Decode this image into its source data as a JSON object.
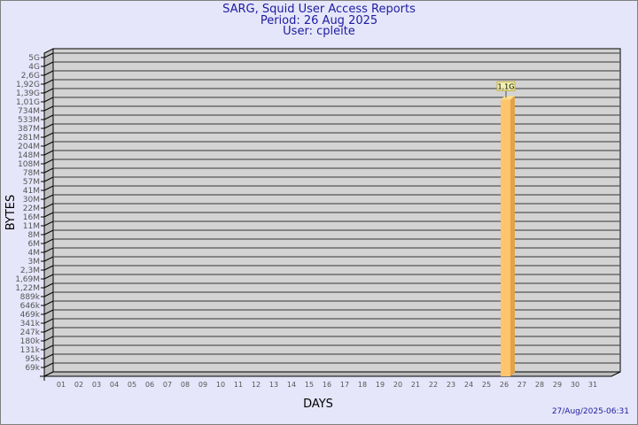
{
  "header": {
    "title": "SARG, Squid User Access Reports",
    "period": "Period: 26 Aug 2025",
    "user": "User: cpleite"
  },
  "footer": {
    "timestamp": "27/Aug/2025-06:31"
  },
  "chart_data": {
    "type": "bar",
    "xlabel": "DAYS",
    "ylabel": "BYTES",
    "categories": [
      "01",
      "02",
      "03",
      "04",
      "05",
      "06",
      "07",
      "08",
      "09",
      "10",
      "11",
      "12",
      "13",
      "14",
      "15",
      "16",
      "17",
      "18",
      "19",
      "20",
      "21",
      "22",
      "23",
      "24",
      "25",
      "26",
      "27",
      "28",
      "29",
      "30",
      "31"
    ],
    "values": [
      0,
      0,
      0,
      0,
      0,
      0,
      0,
      0,
      0,
      0,
      0,
      0,
      0,
      0,
      0,
      0,
      0,
      0,
      0,
      0,
      0,
      0,
      0,
      0,
      0,
      1100000000,
      0,
      0,
      0,
      0,
      0
    ],
    "data_labels": {
      "26": "1,1G"
    },
    "y_ticks": [
      "5G",
      "4G",
      "2,6G",
      "1,92G",
      "1,39G",
      "1,01G",
      "734M",
      "533M",
      "387M",
      "281M",
      "204M",
      "148M",
      "108M",
      "78M",
      "57M",
      "41M",
      "30M",
      "22M",
      "16M",
      "11M",
      "8M",
      "6M",
      "4M",
      "3M",
      "2,3M",
      "1,69M",
      "1,22M",
      "889k",
      "646k",
      "469k",
      "341k",
      "247k",
      "180k",
      "131k",
      "95k",
      "69k"
    ],
    "y_scale": "log",
    "grid": true,
    "colors": {
      "bar_front": "#ffc46c",
      "bar_side": "#e0a448",
      "bar_top": "#ffe08a",
      "wall": "#d3d3d3",
      "background": "#e6e6fa",
      "title": "#1c1ca0",
      "label_box": "#f0f0b0"
    }
  }
}
